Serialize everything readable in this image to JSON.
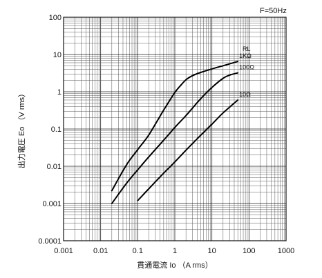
{
  "chart_data": {
    "type": "line",
    "title": "",
    "annotation": "F=50Hz",
    "legend_title": "RL",
    "xlabel": "貫通電流 Io （A rms）",
    "ylabel": "出力電圧 Eo （V rms）",
    "x_scale": "log",
    "y_scale": "log",
    "xlim": [
      0.001,
      1000
    ],
    "ylim": [
      0.0001,
      100
    ],
    "grid": true,
    "x_ticks": [
      "0.001",
      "0.01",
      "0.1",
      "1",
      "10",
      "100",
      "1000"
    ],
    "y_ticks": [
      "0.0001",
      "0.001",
      "0.01",
      "0.1",
      "1",
      "10",
      "100"
    ],
    "series": [
      {
        "name": "1KΩ",
        "x": [
          0.02,
          0.05,
          0.1,
          0.2,
          0.5,
          1,
          1.5,
          2,
          3,
          5,
          10,
          20,
          50
        ],
        "y": [
          0.0022,
          0.011,
          0.028,
          0.07,
          0.32,
          0.95,
          1.55,
          2.1,
          2.7,
          3.3,
          4.1,
          5.0,
          6.5
        ]
      },
      {
        "name": "100Ω",
        "x": [
          0.02,
          0.05,
          0.1,
          0.2,
          0.5,
          1,
          2,
          5,
          10,
          20,
          30,
          50
        ],
        "y": [
          0.001,
          0.0035,
          0.008,
          0.018,
          0.05,
          0.11,
          0.23,
          0.65,
          1.3,
          2.3,
          2.8,
          3.2
        ]
      },
      {
        "name": "10Ω",
        "x": [
          0.1,
          0.2,
          0.5,
          1,
          2,
          5,
          10,
          20,
          50
        ],
        "y": [
          0.0012,
          0.0025,
          0.0065,
          0.013,
          0.027,
          0.068,
          0.135,
          0.27,
          0.6
        ]
      }
    ]
  }
}
